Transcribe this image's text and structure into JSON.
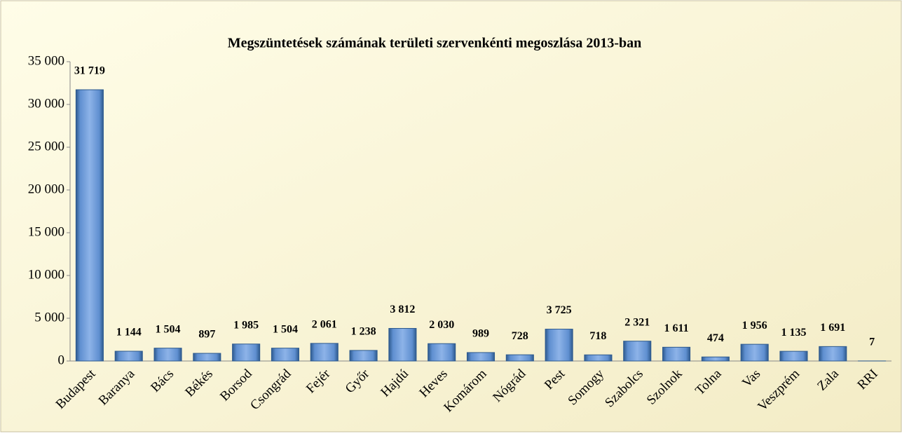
{
  "chart_data": {
    "type": "bar",
    "title": "Megszüntetések számának területi szervenkénti megoszlása 2013-ban",
    "categories": [
      "Budapest",
      "Baranya",
      "Bács",
      "Békés",
      "Borsod",
      "Csongrád",
      "Fejér",
      "Győr",
      "Hajdú",
      "Heves",
      "Komárom",
      "Nógrád",
      "Pest",
      "Somogy",
      "Szabolcs",
      "Szolnok",
      "Tolna",
      "Vas",
      "Veszprém",
      "Zala",
      "RRI"
    ],
    "values": [
      31719,
      1144,
      1504,
      897,
      1985,
      1504,
      2061,
      1238,
      3812,
      2030,
      989,
      728,
      3725,
      718,
      2321,
      1611,
      474,
      1956,
      1135,
      1691,
      7
    ],
    "value_labels": [
      "31 719",
      "1 144",
      "1 504",
      "897",
      "1 985",
      "1 504",
      "2 061",
      "1 238",
      "3 812",
      "2 030",
      "989",
      "728",
      "3 725",
      "718",
      "2 321",
      "1 611",
      "474",
      "1 956",
      "1 135",
      "1 691",
      "7"
    ],
    "color": "#4f81bd",
    "ylim": [
      0,
      35000
    ],
    "yticks": [
      0,
      {
        "value": 5000,
        "label": "5 000"
      },
      {
        "value": 10000,
        "label": "10 000"
      },
      {
        "value": 15000,
        "label": "15 000"
      },
      {
        "value": 20000,
        "label": "20 000"
      },
      {
        "value": 25000,
        "label": "25 000"
      },
      {
        "value": 30000,
        "label": "30 000"
      },
      {
        "value": 35000,
        "label": "35 000"
      }
    ],
    "grid": false
  }
}
